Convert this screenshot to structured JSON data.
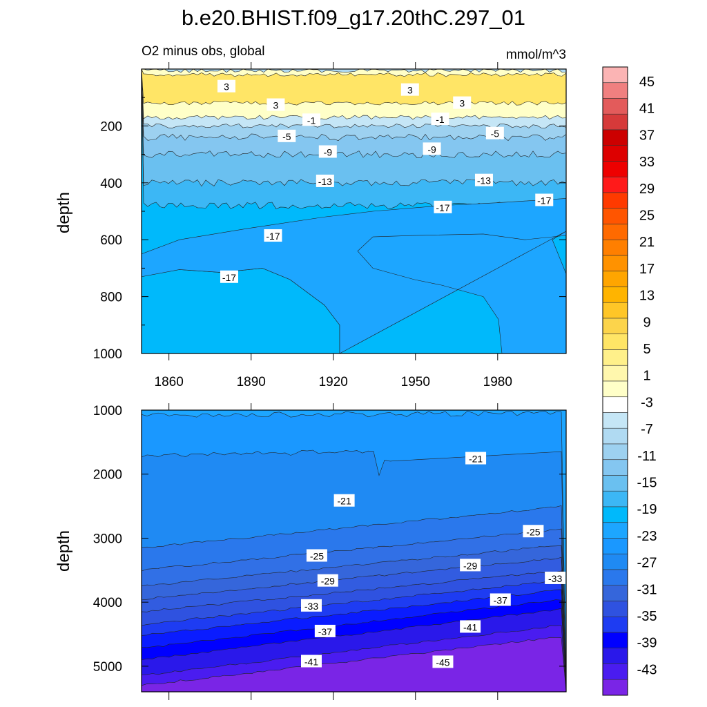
{
  "chart_data": {
    "type": "heatmap",
    "title": "b.e20.BHIST.f09_g17.20thC.297_01",
    "subtitle_left": "O2 minus obs, global",
    "subtitle_right": "mmol/m^3",
    "colorbar": {
      "labels": [
        "45",
        "41",
        "37",
        "33",
        "29",
        "25",
        "21",
        "17",
        "13",
        "9",
        "5",
        "1",
        "-3",
        "-7",
        "-11",
        "-15",
        "-19",
        "-23",
        "-27",
        "-31",
        "-35",
        "-39",
        "-43"
      ],
      "colors": [
        "#fbb4b4",
        "#f08080",
        "#e35b5b",
        "#d63a3a",
        "#cc0000",
        "#dd0000",
        "#ee0000",
        "#ff1a1a",
        "#ff3a00",
        "#ff5500",
        "#ff6a00",
        "#ff7f00",
        "#ff9200",
        "#ffa500",
        "#ffb400",
        "#ffc627",
        "#fcd44b",
        "#ffe566",
        "#fff08a",
        "#fff7ad",
        "#ffffc8",
        "#ffffff",
        "#c5e6f6",
        "#b0daf2",
        "#9dd1f0",
        "#84c6f0",
        "#6ac0f0",
        "#3cb7f5",
        "#00b9fb",
        "#1da6ff",
        "#1a98ff",
        "#1f8af3",
        "#2a78ec",
        "#3566db",
        "#2f52e0",
        "#1e3cf2",
        "#0000ff",
        "#2a18ea",
        "#4a1cf0",
        "#7a25e6"
      ]
    },
    "top_panel": {
      "ylabel": "depth",
      "yticks": [
        "200",
        "400",
        "600",
        "800",
        "1000"
      ],
      "xticks": [
        "1860",
        "1890",
        "1920",
        "1950",
        "1980"
      ],
      "x_range": [
        1850,
        2005
      ],
      "y_range": [
        0,
        1000
      ],
      "bands": [
        {
          "label": "-3",
          "ymax": 5,
          "color": "#b0daf2"
        },
        {
          "label": "1",
          "ymax": 20,
          "color": "#ffffc8"
        },
        {
          "label": "3",
          "ymax": 120,
          "color": "#ffe566"
        },
        {
          "label": "1",
          "ymax": 170,
          "color": "#ffffc8"
        },
        {
          "label": "-1",
          "ymax": 200,
          "color": "#c5e6f6"
        },
        {
          "label": "-5",
          "ymax": 240,
          "color": "#9dd1f0"
        },
        {
          "label": "-9",
          "ymax": 300,
          "color": "#84c6f0"
        },
        {
          "label": "-13",
          "ymax": 400,
          "color": "#6ac0f0"
        },
        {
          "label": "-15",
          "ymax": 480,
          "color": "#3cb7f5"
        },
        {
          "label": "-17",
          "ymax": 1000,
          "color": "#00b9fb"
        }
      ],
      "contour_labels": [
        {
          "text": "3",
          "x": 1881,
          "y": 60
        },
        {
          "text": "3",
          "x": 1899,
          "y": 125
        },
        {
          "text": "3",
          "x": 1948,
          "y": 72
        },
        {
          "text": "3",
          "x": 1967,
          "y": 118
        },
        {
          "text": "-1",
          "x": 1912,
          "y": 178
        },
        {
          "text": "-1",
          "x": 1959,
          "y": 175
        },
        {
          "text": "-5",
          "x": 1903,
          "y": 235
        },
        {
          "text": "-5",
          "x": 1979,
          "y": 225
        },
        {
          "text": "-9",
          "x": 1918,
          "y": 290
        },
        {
          "text": "-9",
          "x": 1956,
          "y": 280
        },
        {
          "text": "-13",
          "x": 1917,
          "y": 393
        },
        {
          "text": "-13",
          "x": 1975,
          "y": 390
        },
        {
          "text": "-17",
          "x": 1960,
          "y": 485
        },
        {
          "text": "-17",
          "x": 1997,
          "y": 460
        },
        {
          "text": "-17",
          "x": 1898,
          "y": 585
        },
        {
          "text": "-17",
          "x": 1882,
          "y": 730
        }
      ]
    },
    "bottom_panel": {
      "ylabel": "depth",
      "yticks": [
        "1000",
        "2000",
        "3000",
        "4000",
        "5000"
      ],
      "x_range": [
        1850,
        2005
      ],
      "y_range": [
        1000,
        5400
      ],
      "bands": [
        {
          "label": "-19",
          "color": "#1da6ff"
        },
        {
          "label": "-21",
          "color": "#1a98ff"
        },
        {
          "label": "-23",
          "color": "#1f8af3"
        },
        {
          "label": "-25",
          "color": "#2a78ec"
        },
        {
          "label": "-27",
          "color": "#3170e6"
        },
        {
          "label": "-29",
          "color": "#3566db"
        },
        {
          "label": "-31",
          "color": "#325ce0"
        },
        {
          "label": "-33",
          "color": "#2f52e0"
        },
        {
          "label": "-35",
          "color": "#1e3cf2"
        },
        {
          "label": "-37",
          "color": "#0a1cff"
        },
        {
          "label": "-39",
          "color": "#0000ff"
        },
        {
          "label": "-41",
          "color": "#2a18ea"
        },
        {
          "label": "-43",
          "color": "#4a1cf0"
        },
        {
          "label": "-45",
          "color": "#7a25e6"
        }
      ],
      "contour_labels": [
        {
          "text": "-21",
          "x": 1972,
          "y": 1750
        },
        {
          "text": "-21",
          "x": 1924,
          "y": 2410
        },
        {
          "text": "-25",
          "x": 1993,
          "y": 2890
        },
        {
          "text": "-25",
          "x": 1914,
          "y": 3270
        },
        {
          "text": "-29",
          "x": 1970,
          "y": 3420
        },
        {
          "text": "-29",
          "x": 1918,
          "y": 3660
        },
        {
          "text": "-33",
          "x": 2001,
          "y": 3620
        },
        {
          "text": "-33",
          "x": 1912,
          "y": 4050
        },
        {
          "text": "-37",
          "x": 1981,
          "y": 3960
        },
        {
          "text": "-37",
          "x": 1917,
          "y": 4450
        },
        {
          "text": "-41",
          "x": 1970,
          "y": 4380
        },
        {
          "text": "-41",
          "x": 1912,
          "y": 4920
        },
        {
          "text": "-45",
          "x": 1960,
          "y": 4930
        }
      ]
    }
  }
}
